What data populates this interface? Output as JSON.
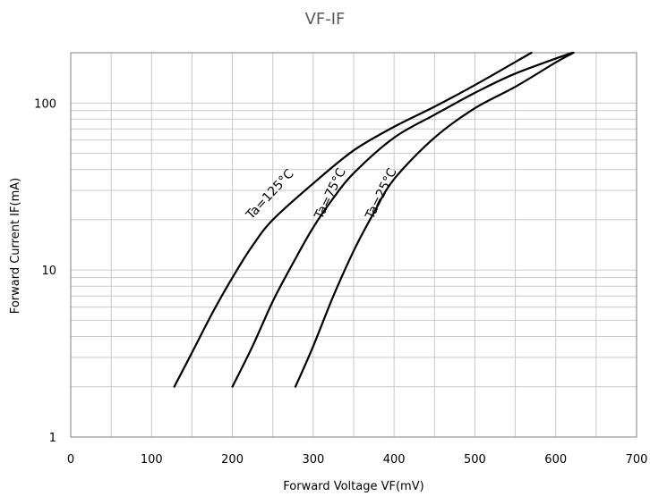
{
  "chart_data": {
    "type": "line",
    "title": "VF-IF",
    "xlabel": "Forward Voltage   VF(mV)",
    "ylabel": "Forward Current   IF(mA)",
    "xlim": [
      0,
      700
    ],
    "ylim": [
      1,
      200
    ],
    "yscale": "log",
    "grid": true,
    "xticks": [
      "0",
      "100",
      "200",
      "300",
      "400",
      "500",
      "600",
      "700"
    ],
    "yticks": [
      "1",
      "10",
      "100"
    ],
    "series": [
      {
        "name": "Ta=125°C",
        "x": [
          128,
          150,
          175,
          200,
          225,
          250,
          300,
          350,
          400,
          450,
          500,
          570
        ],
        "y": [
          2,
          3.2,
          5.5,
          9,
          14,
          20,
          33,
          52,
          72,
          95,
          128,
          200
        ]
      },
      {
        "name": "Ta=75°C",
        "x": [
          200,
          225,
          250,
          275,
          300,
          325,
          350,
          400,
          450,
          500,
          550,
          620
        ],
        "y": [
          2,
          3.5,
          6.5,
          11,
          18,
          27,
          38,
          62,
          85,
          115,
          150,
          200
        ]
      },
      {
        "name": "Ta=25°C",
        "x": [
          278,
          300,
          325,
          350,
          375,
          400,
          450,
          500,
          550,
          600,
          622
        ],
        "y": [
          2,
          3.5,
          7,
          13,
          22,
          35,
          62,
          93,
          125,
          175,
          200
        ]
      }
    ]
  }
}
